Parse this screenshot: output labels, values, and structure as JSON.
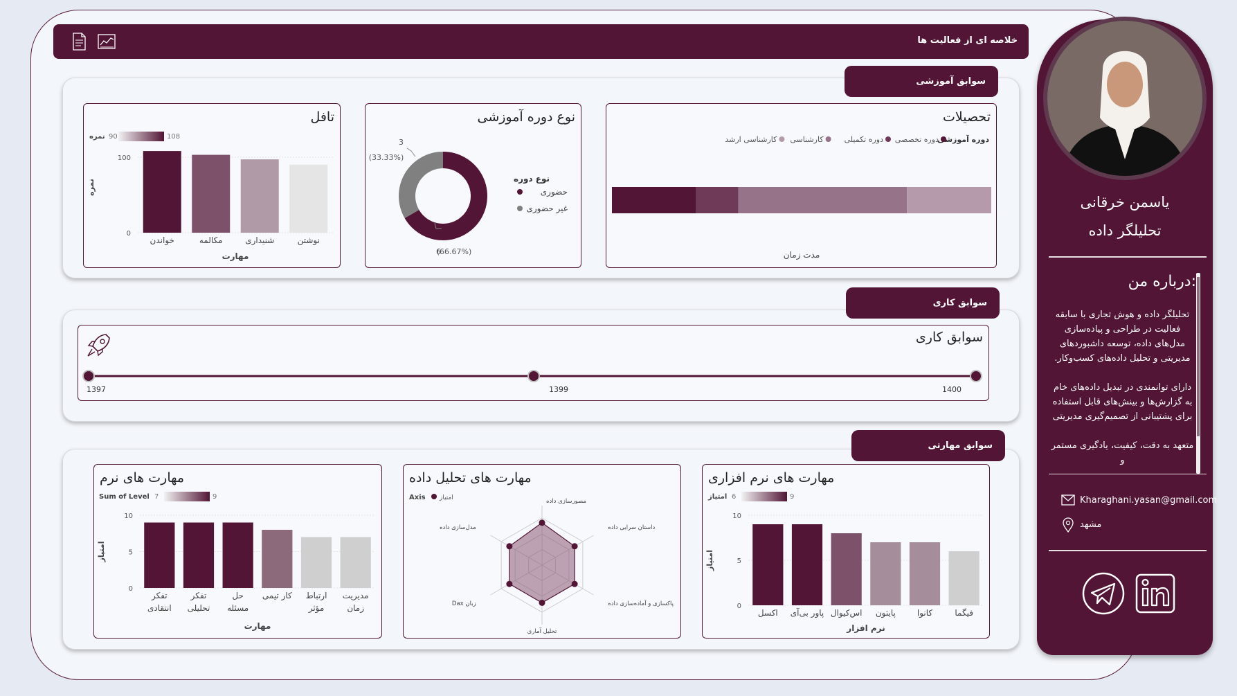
{
  "header": {
    "title": "خلاصه ای از فعالیت ها",
    "icons": [
      "document-icon",
      "chart-icon"
    ]
  },
  "education": {
    "tab": "سوابق آموزشی",
    "degrees": {
      "title": "تحصیلات",
      "legend_title": "دوره آموزشی",
      "legend": [
        {
          "label": "دوره تخصصی",
          "color": "#521535"
        },
        {
          "label": "دوره تکمیلی",
          "color": "#6e3a57"
        },
        {
          "label": "کارشناسی",
          "color": "#97738a"
        },
        {
          "label": "کارشناسی ارشد",
          "color": "#b59aac"
        }
      ],
      "segments": [
        {
          "label": "دوره تخصصی",
          "value": 22,
          "color": "#521535"
        },
        {
          "label": "دوره تکمیلی",
          "value": 11,
          "color": "#6e3a57"
        },
        {
          "label": "کارشناسی",
          "value": 44,
          "color": "#97738a"
        },
        {
          "label": "کارشناسی ارشد",
          "value": 22,
          "color": "#b59aac"
        }
      ],
      "xlabel": "مدت زمان"
    },
    "course_type": {
      "title": "نوع دوره آموزشی",
      "legend_title": "نوع دوره",
      "legend": [
        {
          "label": "حضوری",
          "color": "#521535"
        },
        {
          "label": "غیر حضوری",
          "color": "#808080"
        }
      ],
      "slices": [
        {
          "label": "حضوری",
          "value": 6,
          "pct_text": "(66.67%)",
          "count_text": "6",
          "color": "#521535"
        },
        {
          "label": "غیر حضوری",
          "value": 3,
          "pct_text": "(33.33%)",
          "count_text": "3",
          "color": "#808080"
        }
      ]
    },
    "toefl": {
      "title": "تافل",
      "legend_label": "نمره",
      "legend_min": "90",
      "legend_max": "108",
      "ylabel": "نمره",
      "xlabel": "مهارت",
      "yticks": [
        "0",
        "100"
      ],
      "bars": [
        {
          "label": "خواندن",
          "value": 108,
          "color": "#521535"
        },
        {
          "label": "مکالمه",
          "value": 103,
          "color": "#7d5169"
        },
        {
          "label": "شنیداری",
          "value": 97,
          "color": "#b09aa7"
        },
        {
          "label": "نوشتن",
          "value": 90,
          "color": "#e5e5e5"
        }
      ]
    }
  },
  "work": {
    "tab": "سوابق کاری",
    "title": "سوابق کاری",
    "years": [
      "1397",
      "1399",
      "1400"
    ]
  },
  "skills": {
    "tab": "سوابق مهارتی",
    "software": {
      "title": "مهارت های نرم افزاری",
      "legend_label": "امتیاز",
      "legend_min": "6",
      "legend_max": "9",
      "ylabel": "امتیاز",
      "xlabel": "نرم افزار",
      "yticks": [
        "0",
        "5",
        "10"
      ],
      "bars": [
        {
          "label": "اکسل",
          "value": 9,
          "color": "#521535"
        },
        {
          "label": "پاور بی‌آی",
          "value": 9,
          "color": "#521535"
        },
        {
          "label": "اس‌کیوال",
          "value": 8,
          "color": "#7d5169"
        },
        {
          "label": "پایتون",
          "value": 7,
          "color": "#a68d9b"
        },
        {
          "label": "کانوا",
          "value": 7,
          "color": "#a68d9b"
        },
        {
          "label": "فیگما",
          "value": 6,
          "color": "#cfcfcf"
        }
      ]
    },
    "analysis": {
      "title": "مهارت های تحلیل داده",
      "legend_title": "Axis",
      "legend_label": "امتیاز",
      "axes": [
        "مصورسازی داده",
        "داستان سرایی داده",
        "پاکسازی و آماده‌سازی داده",
        "تحلیل آماری",
        "Dax زبان",
        "مدل‌سازی داده"
      ],
      "values": [
        9,
        8,
        8,
        8,
        8,
        8
      ],
      "max": 10
    },
    "soft": {
      "title": "مهارت های نرم",
      "legend_label": "Sum of Level",
      "legend_min": "7",
      "legend_max": "9",
      "ylabel": "امتیاز",
      "xlabel": "مهارت",
      "yticks": [
        "0",
        "5",
        "10"
      ],
      "bars": [
        {
          "label": [
            "تفکر",
            "انتقادی"
          ],
          "value": 9,
          "color": "#521535"
        },
        {
          "label": [
            "تفکر",
            "تحلیلی"
          ],
          "value": 9,
          "color": "#521535"
        },
        {
          "label": [
            "حل",
            "مسئله"
          ],
          "value": 9,
          "color": "#521535"
        },
        {
          "label": [
            "کار تیمی"
          ],
          "value": 8,
          "color": "#8c6a7c"
        },
        {
          "label": [
            "ارتباط",
            "مؤثر"
          ],
          "value": 7,
          "color": "#cfcfcf"
        },
        {
          "label": [
            "مدیریت",
            "زمان"
          ],
          "value": 7,
          "color": "#cfcfcf"
        }
      ]
    }
  },
  "profile": {
    "name": "یاسمن خرقانی",
    "role": "تحلیلگر داده",
    "about_title": "درباره من:",
    "about_p1": "تحلیلگر داده و هوش تجاری با سابقه فعالیت در طراحی و پیاده‌سازی مدل‌های داده، توسعه داشبوردهای مدیریتی و تحلیل داده‌های کسب‌وکار.",
    "about_p2": "دارای توانمندی در تبدیل داده‌های خام به گزارش‌ها و بینش‌های قابل استفاده برای پشتیبانی از تصمیم‌گیری مدیریتی",
    "about_p3": "متعهد به دقت، کیفیت، یادگیری مستمر و",
    "email": "Kharaghani.yasan@gmail.com",
    "city": "مشهد",
    "social": [
      "telegram-icon",
      "linkedin-icon"
    ]
  }
}
